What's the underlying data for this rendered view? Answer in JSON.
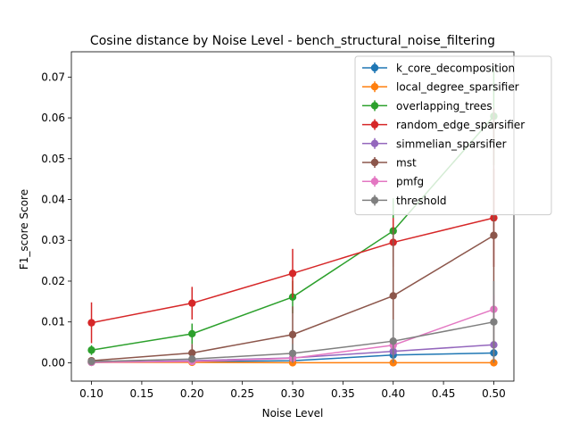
{
  "chart_data": {
    "type": "line",
    "title": "Cosine distance by Noise Level - bench_structural_noise_filtering",
    "xlabel": "Noise Level",
    "ylabel": "F1_score Score",
    "x": [
      0.1,
      0.2,
      0.3,
      0.4,
      0.5
    ],
    "xlim": [
      0.08,
      0.52
    ],
    "ylim": [
      -0.0045,
      0.0762
    ],
    "xticks": [
      "0.10",
      "0.15",
      "0.20",
      "0.25",
      "0.30",
      "0.35",
      "0.40",
      "0.45",
      "0.50"
    ],
    "yticks": [
      "0.00",
      "0.01",
      "0.02",
      "0.03",
      "0.04",
      "0.05",
      "0.06",
      "0.07"
    ],
    "grid": false,
    "legend_position": "top-right",
    "series": [
      {
        "name": "k_core_decomposition",
        "color": "#1f77b4",
        "values": [
          0.0001,
          0.0003,
          0.0005,
          0.0019,
          0.0024
        ],
        "err": [
          0.0002,
          0.0003,
          0.0005,
          0.0008,
          0.0008
        ]
      },
      {
        "name": "local_degree_sparsifier",
        "color": "#ff7f0e",
        "values": [
          0.0001,
          0.0001,
          0.0,
          0.0,
          0.0
        ],
        "err": [
          0.0001,
          0.0001,
          0.0,
          0.0,
          0.0
        ]
      },
      {
        "name": "overlapping_trees",
        "color": "#2ca02c",
        "values": [
          0.0031,
          0.0071,
          0.0161,
          0.0323,
          0.0604
        ],
        "err": [
          0.0012,
          0.0025,
          0.004,
          0.008,
          0.012
        ]
      },
      {
        "name": "random_edge_sparsifier",
        "color": "#d62728",
        "values": [
          0.0098,
          0.0146,
          0.0219,
          0.0295,
          0.0355
        ],
        "err": [
          0.005,
          0.004,
          0.006,
          0.006,
          0.012
        ]
      },
      {
        "name": "simmelian_sparsifier",
        "color": "#9467bd",
        "values": [
          0.0001,
          0.0005,
          0.0012,
          0.0028,
          0.0044
        ],
        "err": [
          0.0002,
          0.0004,
          0.0006,
          0.001,
          0.0012
        ]
      },
      {
        "name": "mst",
        "color": "#8c564b",
        "values": [
          0.0005,
          0.0024,
          0.0069,
          0.0164,
          0.0312
        ],
        "err": [
          0.0005,
          0.0022,
          0.0069,
          0.0164,
          0.0312
        ]
      },
      {
        "name": "pmfg",
        "color": "#e377c2",
        "values": [
          0.0001,
          0.0003,
          0.0011,
          0.0043,
          0.0131
        ],
        "err": [
          0.0002,
          0.0003,
          0.0008,
          0.002,
          0.0035
        ]
      },
      {
        "name": "threshold",
        "color": "#7f7f7f",
        "values": [
          0.0003,
          0.0009,
          0.0023,
          0.0053,
          0.01
        ],
        "err": [
          0.0003,
          0.0009,
          0.0023,
          0.0053,
          0.01
        ]
      }
    ]
  }
}
